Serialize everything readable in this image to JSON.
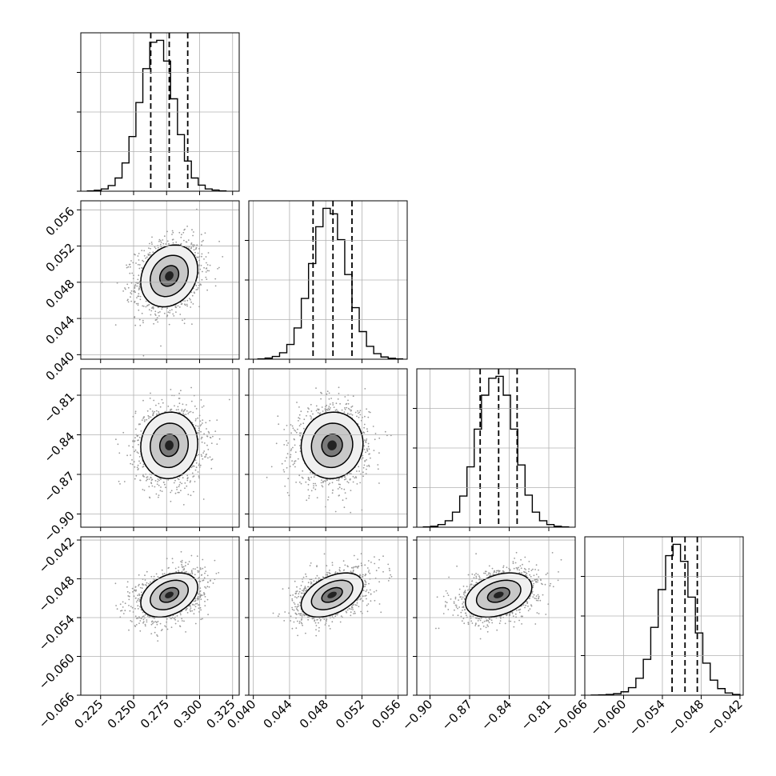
{
  "chart_data": {
    "type": "scatter",
    "plot_kind": "corner",
    "grid": true,
    "parameters": [
      {
        "index": 0,
        "range": [
          0.21,
          0.33
        ],
        "ticks": [
          0.225,
          0.25,
          0.275,
          0.3,
          0.325
        ],
        "tick_labels": [
          "0.225",
          "0.250",
          "0.275",
          "0.300",
          "0.325"
        ],
        "mean": 0.277,
        "sd": 0.012,
        "quantiles": [
          0.263,
          0.277,
          0.291
        ]
      },
      {
        "index": 1,
        "range": [
          0.0395,
          0.057
        ],
        "ticks": [
          0.04,
          0.044,
          0.048,
          0.052,
          0.056
        ],
        "tick_labels": [
          "0.040",
          "0.044",
          "0.048",
          "0.052",
          "0.056"
        ],
        "mean": 0.0487,
        "sd": 0.0019,
        "quantiles": [
          0.0466,
          0.0488,
          0.0509
        ]
      },
      {
        "index": 2,
        "range": [
          -0.91,
          -0.79
        ],
        "ticks": [
          -0.9,
          -0.87,
          -0.84,
          -0.81
        ],
        "tick_labels": [
          "−0.90",
          "−0.87",
          "−0.84",
          "−0.81"
        ],
        "mean": -0.848,
        "sd": 0.014,
        "quantiles": [
          -0.862,
          -0.848,
          -0.834
        ]
      },
      {
        "index": 3,
        "range": [
          -0.066,
          -0.0415
        ],
        "ticks": [
          -0.066,
          -0.06,
          -0.054,
          -0.048,
          -0.042
        ],
        "tick_labels": [
          "−0.066",
          "−0.060",
          "−0.054",
          "−0.048",
          "−0.042"
        ],
        "mean": -0.0505,
        "sd": 0.0019,
        "quantiles": [
          -0.0525,
          -0.0505,
          -0.0486
        ]
      }
    ],
    "histograms": [
      {
        "param": 0,
        "edges_range": [
          0.215,
          0.32
        ],
        "bins": 20,
        "counts": [
          2,
          5,
          12,
          30,
          70,
          150,
          290,
          470,
          650,
          790,
          800,
          690,
          490,
          300,
          160,
          70,
          32,
          12,
          6,
          2
        ]
      },
      {
        "param": 1,
        "edges_range": [
          0.0405,
          0.0565
        ],
        "bins": 20,
        "counts": [
          2,
          6,
          15,
          35,
          80,
          170,
          330,
          520,
          720,
          820,
          790,
          650,
          460,
          280,
          150,
          70,
          30,
          12,
          5,
          2
        ]
      },
      {
        "param": 2,
        "edges_range": [
          -0.905,
          -0.795
        ],
        "bins": 20,
        "counts": [
          2,
          5,
          14,
          34,
          80,
          165,
          320,
          520,
          700,
          790,
          800,
          700,
          520,
          330,
          170,
          80,
          34,
          14,
          5,
          2
        ]
      },
      {
        "param": 3,
        "edges_range": [
          -0.065,
          -0.042
        ],
        "bins": 20,
        "counts": [
          1,
          2,
          4,
          8,
          18,
          40,
          90,
          190,
          360,
          560,
          740,
          800,
          710,
          520,
          330,
          170,
          80,
          35,
          12,
          4
        ]
      }
    ],
    "correlations": [
      {
        "x": 0,
        "y": 1,
        "rho": 0.2
      },
      {
        "x": 0,
        "y": 2,
        "rho": 0.05
      },
      {
        "x": 1,
        "y": 2,
        "rho": 0.05
      },
      {
        "x": 0,
        "y": 3,
        "rho": 0.35
      },
      {
        "x": 1,
        "y": 3,
        "rho": 0.45
      },
      {
        "x": 2,
        "y": 3,
        "rho": 0.35
      }
    ],
    "contour_levels_sigma": [
      0.6,
      1.2,
      1.8
    ],
    "colors": {
      "points": "#9a9a9a",
      "lines": "#000000",
      "grid": "#b0b0b0"
    }
  }
}
